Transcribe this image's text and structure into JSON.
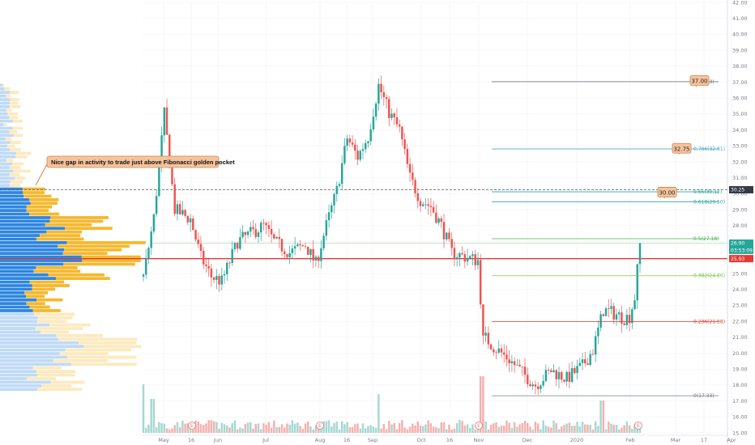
{
  "chart_data": {
    "type": "candlestick",
    "x_labels": [
      "May",
      "16",
      "Jun",
      "Jul",
      "Aug",
      "16",
      "Sep",
      "Oct",
      "16",
      "Nov",
      "Dec",
      "2020",
      "Feb",
      "Mar",
      "17",
      "Apr"
    ],
    "y_ticks": [
      "15.00",
      "16.00",
      "17.00",
      "18.00",
      "19.00",
      "20.00",
      "21.00",
      "22.00",
      "23.00",
      "24.00",
      "25.00",
      "26.00",
      "27.00",
      "28.00",
      "29.00",
      "30.00",
      "31.00",
      "32.00",
      "33.00",
      "34.00",
      "35.00",
      "36.00",
      "37.00",
      "38.00",
      "39.00",
      "40.00",
      "41.00",
      "42.00"
    ],
    "ylim": [
      15,
      42
    ],
    "price_path": [
      [
        0,
        24.8
      ],
      [
        4,
        28.5
      ],
      [
        8,
        35.0
      ],
      [
        12,
        29.0
      ],
      [
        18,
        28.4
      ],
      [
        22,
        26.0
      ],
      [
        26,
        24.8
      ],
      [
        30,
        24.5
      ],
      [
        36,
        27.0
      ],
      [
        42,
        27.6
      ],
      [
        46,
        28.0
      ],
      [
        50,
        27.0
      ],
      [
        56,
        26.3
      ],
      [
        62,
        26.8
      ],
      [
        66,
        25.6
      ],
      [
        70,
        28.0
      ],
      [
        74,
        30.2
      ],
      [
        78,
        33.5
      ],
      [
        82,
        32.3
      ],
      [
        86,
        33.6
      ],
      [
        90,
        36.8
      ],
      [
        94,
        35.1
      ],
      [
        98,
        34.0
      ],
      [
        102,
        31.0
      ],
      [
        106,
        29.6
      ],
      [
        110,
        29.2
      ],
      [
        114,
        28.0
      ],
      [
        118,
        26.3
      ],
      [
        122,
        26.1
      ],
      [
        126,
        25.9
      ],
      [
        128,
        25.8
      ],
      [
        130,
        21.1
      ],
      [
        134,
        20.4
      ],
      [
        140,
        19.6
      ],
      [
        146,
        18.6
      ],
      [
        150,
        18.0
      ],
      [
        156,
        18.9
      ],
      [
        162,
        18.4
      ],
      [
        168,
        19.2
      ],
      [
        172,
        20.2
      ],
      [
        176,
        22.7
      ],
      [
        180,
        22.5
      ],
      [
        184,
        22.2
      ],
      [
        186,
        22.3
      ],
      [
        188,
        23.5
      ],
      [
        190,
        26.9
      ]
    ],
    "fib_levels": [
      {
        "label": "1(37.03)",
        "value": 37.03,
        "color": "#787b86"
      },
      {
        "label": "0.786(32.81)",
        "value": 32.81,
        "color": "#4aa8c4"
      },
      {
        "label": "0.65(30.12)",
        "value": 30.12,
        "color": "#26a69a"
      },
      {
        "label": "0.618(29.50)",
        "value": 29.5,
        "color": "#26a69a"
      },
      {
        "label": "0.5(27.18)",
        "value": 27.18,
        "color": "#4caf50"
      },
      {
        "label": "0.382(24.86)",
        "value": 24.86,
        "color": "#8bc34a"
      },
      {
        "label": "0.236(21.98)",
        "value": 21.98,
        "color": "#e53935"
      },
      {
        "label": "0(17.33)",
        "value": 17.33,
        "color": "#787b86"
      }
    ],
    "price_badges": [
      {
        "text": "30.25",
        "value": 30.25,
        "bg": "#363a45"
      },
      {
        "text": "26.90",
        "value": 26.9,
        "bg": "#26a69a"
      },
      {
        "text": "03:53:09",
        "value": 26.45,
        "bg": "#26a69a"
      },
      {
        "text": "25.93",
        "value": 25.93,
        "bg": "#e53935"
      }
    ],
    "targets": [
      {
        "text": "37.00",
        "value": 37.0
      },
      {
        "text": "32.75",
        "value": 32.75
      },
      {
        "text": "30.00",
        "value": 30.0
      }
    ],
    "horizontal_lines": {
      "dashed": 30.25,
      "red": 25.93,
      "green": 26.9
    },
    "volume_profile": {
      "high": 36.9,
      "low": 17.6
    },
    "event_marker": "E",
    "annotation": "Nice gap in activity to trade just above Fibonacci golden pocket"
  },
  "colors": {
    "up": "#26a69a",
    "down": "#ef5350",
    "vp_blue": "#2e86e0",
    "vp_orange": "#f5b82e",
    "red_line": "#e53935",
    "grid": "#eef0f3"
  }
}
